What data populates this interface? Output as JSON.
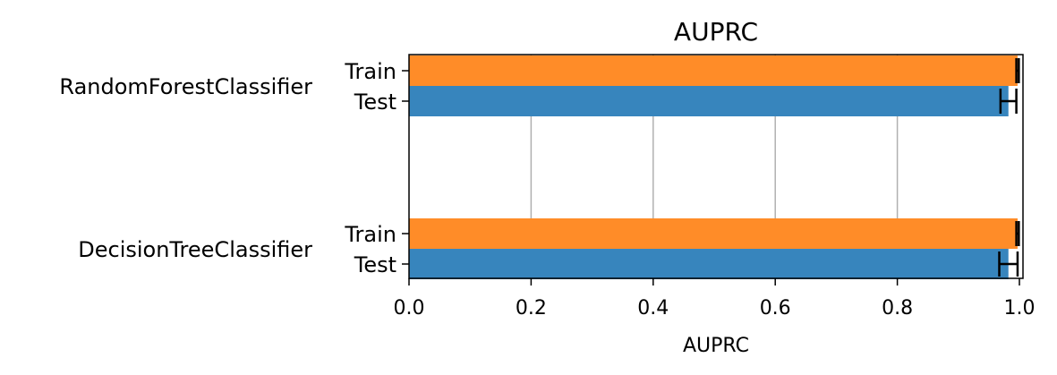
{
  "chart_data": {
    "type": "bar",
    "orientation": "horizontal",
    "title": "AUPRC",
    "xlabel": "AUPRC",
    "ylabel": "",
    "xlim": [
      0.0,
      1.005
    ],
    "xticks": [
      "0.0",
      "0.2",
      "0.4",
      "0.6",
      "0.8",
      "1.0"
    ],
    "grid": "vertical",
    "legend": "none",
    "categories": [
      "RandomForestClassifier",
      "DecisionTreeClassifier"
    ],
    "series": [
      {
        "name": "Train",
        "color": "#ff8c28",
        "values": [
          0.997,
          0.997
        ],
        "error": [
          0.002,
          0.002
        ]
      },
      {
        "name": "Test",
        "color": "#3785bd",
        "values": [
          0.982,
          0.982
        ],
        "error": [
          0.013,
          0.015
        ]
      }
    ]
  }
}
